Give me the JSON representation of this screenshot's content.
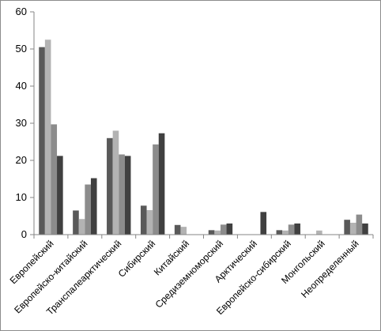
{
  "chart_data": {
    "type": "bar",
    "title": "",
    "xlabel": "",
    "ylabel": "",
    "ylim": [
      0,
      60
    ],
    "yticks": [
      0,
      10,
      20,
      30,
      40,
      50,
      60
    ],
    "grid": false,
    "legend": "none",
    "categories": [
      "Европейский",
      "Европейско-китайский",
      "Транспалеарктический",
      "Сибирский",
      "Китайский",
      "Средиземноморский",
      "Арктический",
      "Европейско-сибирский",
      "Монгольский",
      "Неопределенный"
    ],
    "series": [
      {
        "color": "#595959",
        "values": [
          50.5,
          6.5,
          26.0,
          7.8,
          2.6,
          1.2,
          0.0,
          1.2,
          0.0,
          4.0
        ]
      },
      {
        "color": "#b3b3b3",
        "values": [
          52.5,
          4.2,
          28.0,
          6.6,
          2.1,
          1.1,
          0.0,
          1.1,
          1.1,
          3.2
        ]
      },
      {
        "color": "#8c8c8c",
        "values": [
          29.7,
          13.5,
          21.6,
          24.3,
          0.0,
          2.7,
          0.0,
          2.7,
          0.0,
          5.4
        ]
      },
      {
        "color": "#404040",
        "values": [
          21.2,
          15.2,
          21.2,
          27.3,
          0.0,
          3.0,
          6.1,
          3.0,
          0.0,
          3.0
        ]
      }
    ]
  }
}
